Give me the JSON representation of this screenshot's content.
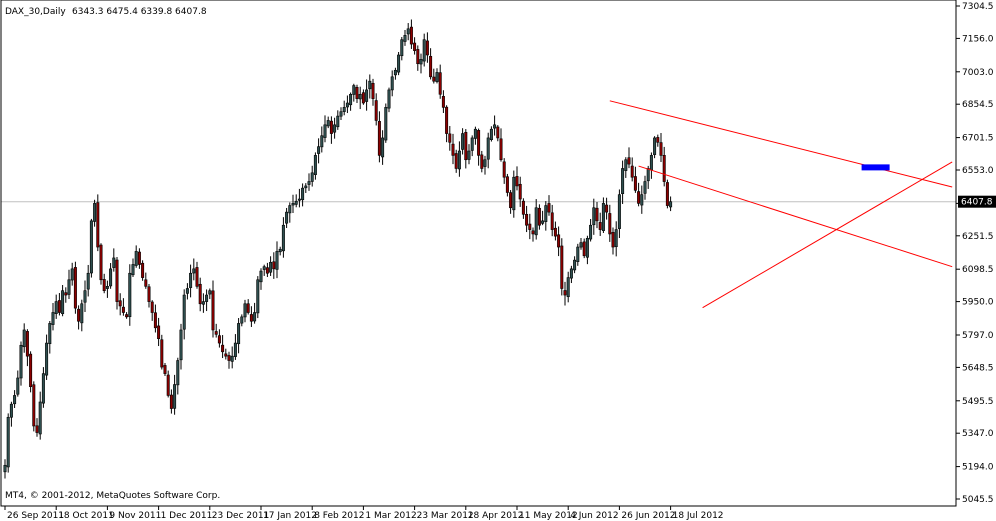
{
  "header": {
    "symbol": "DAX_30,Daily",
    "ohlc": "6343.3 6475.4 6339.8 6407.8"
  },
  "footer": {
    "copyright": "MT4, © 2001-2012, MetaQuotes Software Corp."
  },
  "colors": {
    "background": "#ffffff",
    "candle_outline": "#000000",
    "bull_fill": "#2f4f4f",
    "bear_fill": "#8b0000",
    "trendline": "#ff0000",
    "price_line": "#c0c0c0",
    "marker": "#0000ff",
    "price_box_bg": "#000000",
    "price_box_text": "#ffffff"
  },
  "chart_data": {
    "type": "candlestick",
    "title": "DAX_30,Daily",
    "ylim": [
      5045.5,
      7304.5
    ],
    "grid": false,
    "current_price": 6407.8,
    "y_ticks": [
      "7304.5",
      "7156.0",
      "7003.0",
      "6854.5",
      "6701.5",
      "6553.0",
      "6400.0",
      "6251.5",
      "6098.5",
      "5950.0",
      "5797.0",
      "5648.5",
      "5495.5",
      "5347.0",
      "5194.0",
      "5045.5"
    ],
    "x_ticks": [
      "26 Sep 2011",
      "18 Oct 2011",
      "9 Nov 2011",
      "1 Dec 2011",
      "23 Dec 2011",
      "17 Jan 2012",
      "8 Feb 2012",
      "1 Mar 2012",
      "23 Mar 2012",
      "18 Apr 2012",
      "11 May 2012",
      "4 Jun 2012",
      "26 Jun 2012",
      "18 Jul 2012"
    ],
    "ticks_per_label": 16,
    "closes": [
      5200,
      5420,
      5480,
      5520,
      5600,
      5750,
      5820,
      5700,
      5560,
      5380,
      5350,
      5490,
      5620,
      5760,
      5850,
      5900,
      5950,
      5900,
      6000,
      5980,
      6050,
      6100,
      5920,
      5860,
      5940,
      6000,
      6080,
      6320,
      6400,
      6200,
      6050,
      6000,
      6020,
      6100,
      6150,
      5950,
      5930,
      5900,
      5880,
      6080,
      6120,
      6180,
      6120,
      6060,
      6020,
      5950,
      5900,
      5830,
      5780,
      5650,
      5620,
      5520,
      5460,
      5570,
      5680,
      5820,
      5980,
      6010,
      6080,
      6100,
      6020,
      5940,
      5950,
      5980,
      6000,
      5820,
      5800,
      5760,
      5720,
      5700,
      5680,
      5700,
      5760,
      5850,
      5880,
      5940,
      5900,
      5860,
      5900,
      6050,
      6090,
      6110,
      6080,
      6130,
      6100,
      6180,
      6190,
      6300,
      6360,
      6390,
      6400,
      6410,
      6420,
      6470,
      6480,
      6500,
      6540,
      6620,
      6660,
      6710,
      6760,
      6780,
      6720,
      6760,
      6800,
      6820,
      6840,
      6860,
      6900,
      6940,
      6880,
      6900,
      6860,
      6920,
      6960,
      6880,
      6780,
      6620,
      6700,
      6840,
      6920,
      6980,
      7010,
      7080,
      7150,
      7170,
      7200,
      7130,
      7100,
      7040,
      7060,
      7150,
      7080,
      6980,
      6960,
      7000,
      6900,
      6840,
      6720,
      6680,
      6620,
      6560,
      6640,
      6720,
      6600,
      6640,
      6700,
      6740,
      6620,
      6560,
      6600,
      6700,
      6740,
      6760,
      6700,
      6600,
      6520,
      6450,
      6380,
      6520,
      6480,
      6420,
      6350,
      6300,
      6280,
      6260,
      6380,
      6300,
      6320,
      6390,
      6360,
      6280,
      6250,
      6200,
      6010,
      5980,
      6060,
      6100,
      6140,
      6200,
      6220,
      6160,
      6240,
      6300,
      6380,
      6320,
      6280,
      6400,
      6360,
      6260,
      6200,
      6280,
      6440,
      6560,
      6600,
      6580,
      6520,
      6460,
      6400,
      6440,
      6500,
      6560,
      6620,
      6700,
      6680,
      6620,
      6500,
      6390,
      6407.8
    ]
  },
  "trendlines": [
    {
      "from_date_index": 189,
      "from_price": 6870,
      "to_date_index": 296,
      "to_price": 6475
    },
    {
      "from_date_index": 198,
      "from_price": 6571,
      "to_date_index": 296,
      "to_price": 6110
    },
    {
      "from_date_index": 218,
      "from_price": 5922,
      "to_date_index": 296,
      "to_price": 6590
    }
  ],
  "marker": {
    "date_index": 268,
    "price": 6565
  }
}
